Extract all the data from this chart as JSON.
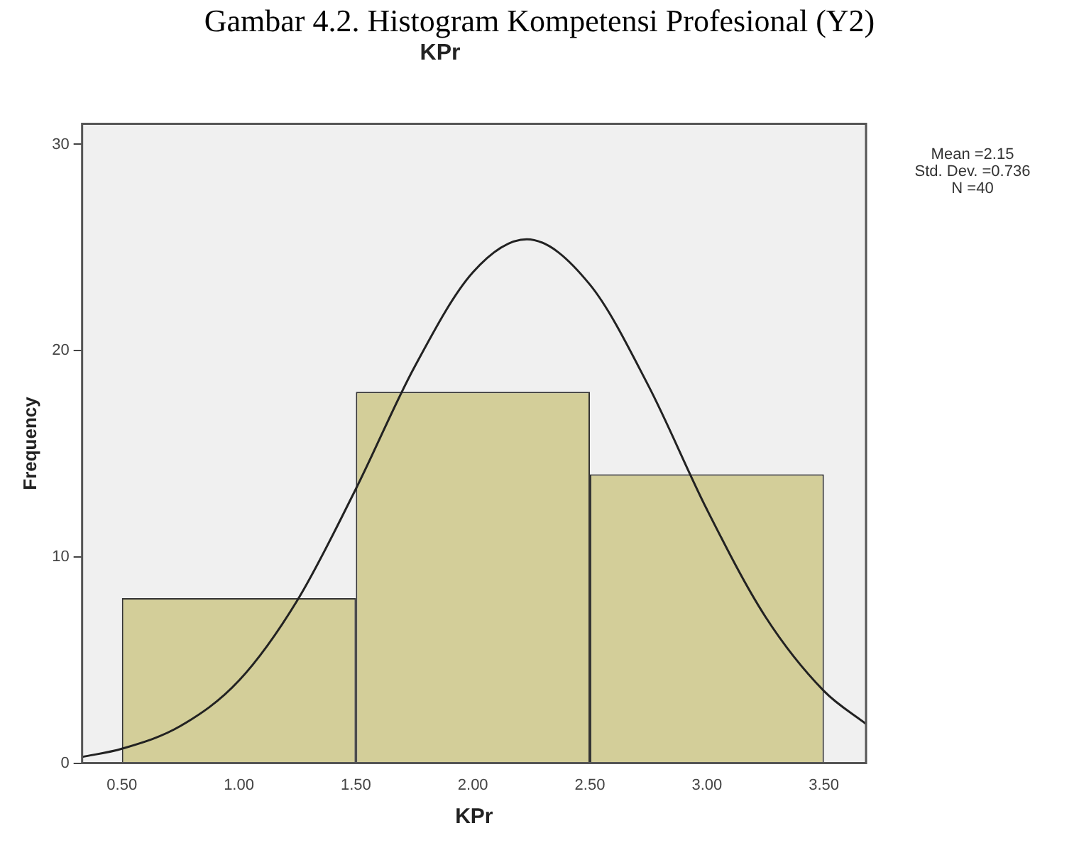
{
  "chart_data": {
    "type": "histogram",
    "title": "Gambar 4.2. Histogram Kompetensi Profesional (Y2)",
    "subtitle": "KPr",
    "xlabel": "KPr",
    "ylabel": "Frequency",
    "bins": [
      0.5,
      1.5,
      2.5,
      3.5
    ],
    "values": [
      8,
      18,
      14
    ],
    "color": "#d3ce99",
    "series": [
      {
        "type": "line",
        "color": "#222222",
        "x": [
          0.33,
          0.5,
          0.75,
          1.0,
          1.25,
          1.5,
          1.75,
          2.0,
          2.23,
          2.5,
          2.75,
          3.0,
          3.25,
          3.5,
          3.68
        ],
        "values": [
          0.3,
          0.7,
          1.8,
          4.0,
          7.9,
          13.3,
          19.2,
          23.8,
          25.4,
          23.2,
          18.3,
          12.3,
          7.1,
          3.5,
          1.9
        ]
      }
    ],
    "xlim": [
      0.33,
      3.68
    ],
    "ylim": [
      0,
      31
    ],
    "xticks": [
      {
        "value": 0.5,
        "label": "0.50"
      },
      {
        "value": 1,
        "label": "1.00"
      },
      {
        "value": 1.5,
        "label": "1.50"
      },
      {
        "value": 2,
        "label": "2.00"
      },
      {
        "value": 2.5,
        "label": "2.50"
      },
      {
        "value": 3,
        "label": "3.00"
      },
      {
        "value": 3.5,
        "label": "3.50"
      }
    ],
    "yticks": [
      0,
      10,
      20,
      30
    ],
    "annotations": [
      "Mean =2.15\nStd. Dev. =0.736\nN =40"
    ],
    "grid": false,
    "legend": false,
    "marker": "none",
    "line_style": "solid"
  }
}
